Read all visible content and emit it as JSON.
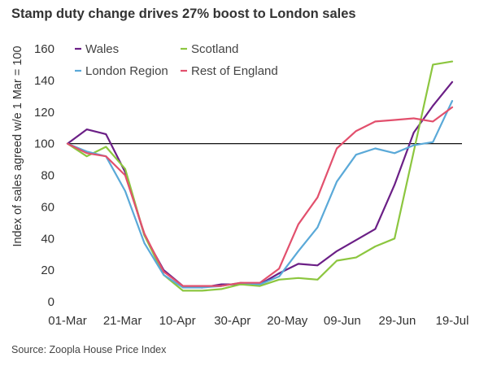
{
  "chart_data": {
    "type": "line",
    "title": "Stamp duty change drives 27% boost to London sales",
    "ylabel": "Index of sales agreed w/e 1 Mar = 100",
    "xlabel": "",
    "source": "Source: Zoopla House Price Index",
    "x_ticks": [
      "01-Mar",
      "21-Mar",
      "10-Apr",
      "30-Apr",
      "20-May",
      "09-Jun",
      "29-Jun",
      "19-Jul"
    ],
    "y_ticks": [
      "0",
      "20",
      "40",
      "60",
      "80",
      "100",
      "120",
      "140",
      "160"
    ],
    "ylim": [
      0,
      160
    ],
    "reference_line": 100,
    "x_days": [
      0,
      7,
      14,
      21,
      28,
      35,
      42,
      49,
      56,
      63,
      70,
      77,
      84,
      91,
      98,
      105,
      112,
      119,
      126,
      133,
      140
    ],
    "series": [
      {
        "name": "Wales",
        "color": "#6b1f86",
        "values": [
          100,
          109,
          106,
          82,
          42,
          20,
          10,
          9,
          11,
          11,
          11,
          18,
          24,
          23,
          32,
          39,
          46,
          74,
          107,
          124,
          139
        ]
      },
      {
        "name": "Scotland",
        "color": "#8cc63f",
        "values": [
          100,
          92,
          98,
          84,
          42,
          17,
          7,
          7,
          8,
          11,
          10,
          14,
          15,
          14,
          26,
          28,
          35,
          40,
          95,
          150,
          152
        ]
      },
      {
        "name": "London Region",
        "color": "#5aa9d8",
        "values": [
          100,
          95,
          92,
          70,
          37,
          17,
          9,
          9,
          10,
          12,
          11,
          16,
          32,
          47,
          76,
          93,
          97,
          94,
          99,
          101,
          127
        ]
      },
      {
        "name": "Rest of England",
        "color": "#e2506d",
        "values": [
          100,
          94,
          92,
          80,
          43,
          19,
          10,
          10,
          10,
          12,
          12,
          21,
          49,
          66,
          97,
          108,
          114,
          115,
          116,
          114,
          123
        ]
      }
    ],
    "legend": "top-left, two columns"
  }
}
